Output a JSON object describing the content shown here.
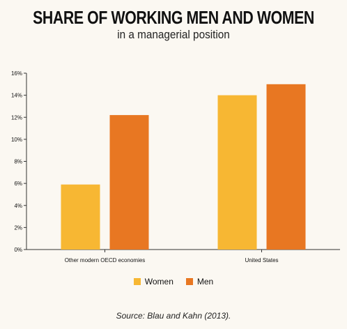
{
  "title": "SHARE OF WORKING MEN AND WOMEN",
  "subtitle": "in a managerial position",
  "source": "Source: Blau and Kahn (2013).",
  "colors": {
    "women": "#f7b733",
    "men": "#e87722",
    "axis": "#333333"
  },
  "chart_data": {
    "type": "bar",
    "categories": [
      "Other modern OECD economies",
      "United States"
    ],
    "series": [
      {
        "name": "Women",
        "values": [
          5.9,
          14.0
        ]
      },
      {
        "name": "Men",
        "values": [
          12.2,
          15.0
        ]
      }
    ],
    "ylim": [
      0,
      16
    ],
    "yticks": [
      0,
      2,
      4,
      6,
      8,
      10,
      12,
      14,
      16
    ],
    "ytick_labels": [
      "0%",
      "2%",
      "4%",
      "6%",
      "8%",
      "10%",
      "12%",
      "14%",
      "16%"
    ],
    "unit": "%",
    "legend_position": "bottom",
    "grid": false
  }
}
